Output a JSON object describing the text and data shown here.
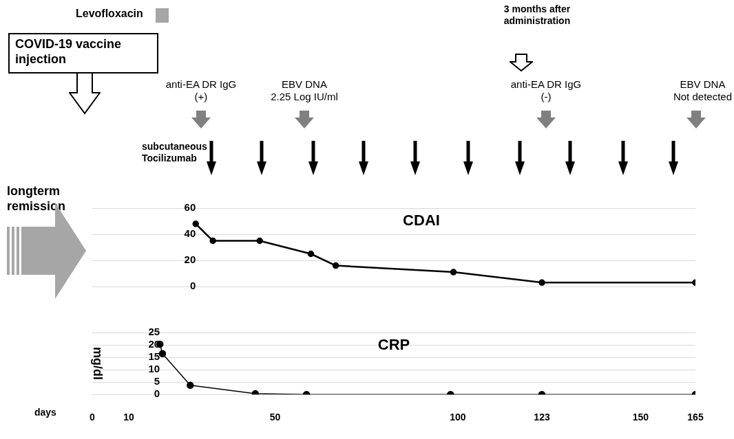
{
  "chart_data": [
    {
      "type": "line",
      "title": "CDAI",
      "x": [
        28.3,
        33,
        45.8,
        59.8,
        66.6,
        98.8,
        123,
        165
      ],
      "series": [
        {
          "color": "#000000",
          "values": [
            48,
            35,
            35,
            25,
            16,
            11,
            3,
            3
          ]
        }
      ],
      "xlim": [
        0,
        165
      ],
      "ylim": [
        0,
        60
      ],
      "yticks": [
        0,
        20,
        40,
        60
      ],
      "grid": "y",
      "marker": "circle",
      "tick_labels": "y",
      "annotations": [
        "Levofloxacin",
        "COVID-19 vaccine\ninjection",
        "3 months after\nadministration",
        "longterm\nremission",
        "subcutaneous\nTocilizumab",
        "anti-EA DR IgG\n(+)",
        "EBV DNA\n2.25 Log IU/ml",
        "anti-EA DR IgG\n(-)",
        "EBV DNA\nNot detected"
      ]
    },
    {
      "type": "line",
      "title": "CRP",
      "ylabel": "mg/dl",
      "xlabel": "days",
      "x": [
        18.5,
        19.2,
        26.8,
        44.6,
        58.6,
        98,
        123,
        165
      ],
      "series": [
        {
          "color": "#000000",
          "values": [
            20.3,
            16.5,
            3.7,
            0.3,
            0,
            0,
            0,
            0
          ]
        }
      ],
      "xlim": [
        0,
        165
      ],
      "xticks": [
        0,
        10,
        50,
        100,
        123,
        150,
        165
      ],
      "ylim": [
        0,
        25
      ],
      "yticks": [
        0,
        5,
        10,
        15,
        20,
        25
      ],
      "grid": "y",
      "marker": "circle"
    }
  ]
}
